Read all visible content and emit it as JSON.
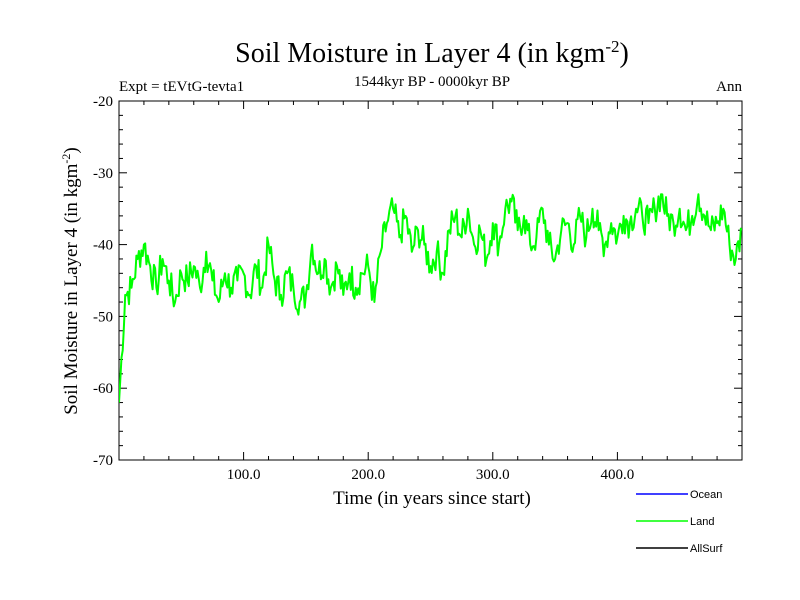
{
  "chart_data": {
    "type": "line",
    "title": "Soil Moisture in Layer 4 (in kgm",
    "title_sup": "-2",
    "title_close": ")",
    "subtitle": "1544kyr BP - 0000kyr BP",
    "left_label": "Expt = tEVtG-tevta1",
    "right_label": "Ann",
    "xlabel": "Time (in years since start)",
    "ylabel": "Soil Moisture in Layer 4 (in kgm",
    "ylabel_sup": "-2",
    "ylabel_close": ")",
    "xlim": [
      0,
      500
    ],
    "ylim": [
      -70,
      -20
    ],
    "x_ticks": [
      100,
      200,
      300,
      400
    ],
    "x_tick_labels": [
      "100.0",
      "200.0",
      "300.0",
      "400.0"
    ],
    "y_ticks": [
      -70,
      -60,
      -50,
      -40,
      -30,
      -20
    ],
    "y_tick_labels": [
      "-70",
      "-60",
      "-50",
      "-40",
      "-30",
      "-20"
    ],
    "grid": false,
    "legend": [
      {
        "name": "Ocean",
        "color": "#0000ff"
      },
      {
        "name": "Land",
        "color": "#00ff00"
      },
      {
        "name": "AllSurf",
        "color": "#000000"
      }
    ],
    "series": [
      {
        "name": "Land",
        "color": "#00ff00",
        "x": [
          0,
          5,
          10,
          15,
          20,
          25,
          30,
          35,
          40,
          45,
          50,
          55,
          60,
          65,
          70,
          75,
          80,
          85,
          90,
          95,
          100,
          105,
          110,
          115,
          120,
          125,
          130,
          135,
          140,
          145,
          150,
          155,
          160,
          165,
          170,
          175,
          180,
          185,
          190,
          195,
          200,
          205,
          210,
          215,
          220,
          225,
          230,
          235,
          240,
          245,
          250,
          255,
          260,
          265,
          270,
          275,
          280,
          285,
          290,
          295,
          300,
          305,
          310,
          315,
          320,
          325,
          330,
          335,
          340,
          345,
          350,
          355,
          360,
          365,
          370,
          375,
          380,
          385,
          390,
          395,
          400,
          405,
          410,
          415,
          420,
          425,
          430,
          435,
          440,
          445,
          450,
          455,
          460,
          465,
          470,
          475,
          480,
          485,
          490,
          495,
          500
        ],
        "values": [
          -62,
          -47,
          -46,
          -42,
          -40,
          -43,
          -46,
          -42,
          -45,
          -48,
          -44,
          -45,
          -43,
          -46,
          -41,
          -45,
          -48,
          -44,
          -46,
          -45,
          -44,
          -47,
          -43,
          -46,
          -40,
          -45,
          -47,
          -44,
          -46,
          -48,
          -47,
          -40,
          -44,
          -42,
          -46,
          -43,
          -47,
          -44,
          -46,
          -44,
          -43,
          -48,
          -41,
          -37,
          -35,
          -39,
          -36,
          -41,
          -38,
          -40,
          -43,
          -41,
          -44,
          -38,
          -36,
          -39,
          -35,
          -40,
          -38,
          -42,
          -37,
          -40,
          -35,
          -34,
          -38,
          -36,
          -40,
          -39,
          -35,
          -40,
          -42,
          -38,
          -37,
          -40,
          -36,
          -39,
          -35,
          -38,
          -40,
          -37,
          -39,
          -36,
          -37,
          -35,
          -36,
          -37,
          -35,
          -33,
          -36,
          -37,
          -35,
          -38,
          -36,
          -33,
          -36,
          -38,
          -37,
          -35,
          -40,
          -42,
          -38
        ]
      }
    ]
  }
}
